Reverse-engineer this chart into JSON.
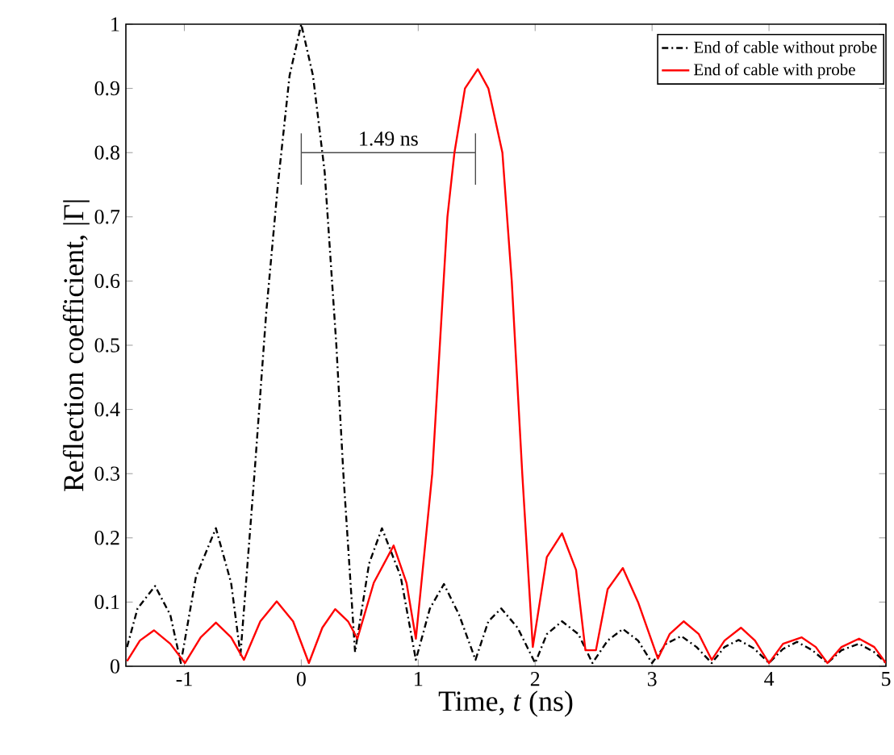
{
  "chart_data": {
    "type": "line",
    "xlabel": "Time, *t* (ns)",
    "ylabel": "Reflection coefficient, |Γ|",
    "xlim": [
      -1.5,
      5
    ],
    "xticks": [
      -1,
      0,
      1,
      2,
      3,
      4,
      5
    ],
    "ylim": [
      0,
      1
    ],
    "yticks": [
      0,
      0.1,
      0.2,
      0.3,
      0.4,
      0.5,
      0.6,
      0.7,
      0.8,
      0.9,
      1
    ],
    "grid": false,
    "legend": "top right",
    "marker": "none",
    "annotations": [
      {
        "text": "1.49 ns",
        "x": 0.745,
        "y": 0.8
      }
    ],
    "series": [
      {
        "name": "End of cable without probe",
        "color": "#000000",
        "line_style": "dashdot",
        "x": [
          -1.49,
          -1.4,
          -1.25,
          -1.12,
          -1.03,
          -0.9,
          -0.73,
          -0.6,
          -0.52,
          -0.4,
          -0.3,
          -0.2,
          -0.1,
          0,
          0.1,
          0.2,
          0.3,
          0.36,
          0.46,
          0.58,
          0.69,
          0.85,
          0.98,
          1.1,
          1.22,
          1.35,
          1.49,
          1.6,
          1.71,
          1.85,
          2.0,
          2.1,
          2.23,
          2.37,
          2.49,
          2.62,
          2.75,
          2.88,
          3.0,
          3.12,
          3.25,
          3.38,
          3.51,
          3.62,
          3.74,
          3.87,
          4.0,
          4.12,
          4.24,
          4.37,
          4.5,
          4.62,
          4.77,
          4.9,
          5.0
        ],
        "values": [
          0.03,
          0.09,
          0.125,
          0.08,
          0.005,
          0.14,
          0.215,
          0.13,
          0.018,
          0.3,
          0.55,
          0.75,
          0.92,
          1.0,
          0.92,
          0.77,
          0.5,
          0.3,
          0.022,
          0.16,
          0.215,
          0.14,
          0.01,
          0.09,
          0.128,
          0.08,
          0.01,
          0.07,
          0.09,
          0.06,
          0.005,
          0.05,
          0.07,
          0.05,
          0.005,
          0.04,
          0.058,
          0.04,
          0.005,
          0.035,
          0.047,
          0.03,
          0.005,
          0.03,
          0.041,
          0.028,
          0.005,
          0.027,
          0.038,
          0.025,
          0.005,
          0.025,
          0.035,
          0.022,
          0.005
        ]
      },
      {
        "type": "line",
        "color": "#4c4c4c",
        "x": [
          0,
          1.49
        ],
        "values": [
          0.8,
          0.8
        ],
        "errors": [
          [
            0.75,
            0.83
          ],
          [
            0.75,
            0.83
          ]
        ]
      },
      {
        "name": "End of cable with probe",
        "color": "#ff0000",
        "line_style": "solid",
        "x": [
          -1.49,
          -1.38,
          -1.26,
          -1.12,
          -0.995,
          -0.86,
          -0.73,
          -0.6,
          -0.49,
          -0.35,
          -0.21,
          -0.07,
          0.065,
          0.18,
          0.29,
          0.4,
          0.48,
          0.62,
          0.79,
          0.9,
          0.98,
          1.12,
          1.25,
          1.31,
          1.4,
          1.51,
          1.6,
          1.72,
          1.8,
          1.89,
          1.98,
          2.1,
          2.23,
          2.35,
          2.43,
          2.52,
          2.62,
          2.75,
          2.88,
          3.05,
          3.15,
          3.27,
          3.4,
          3.51,
          3.62,
          3.76,
          3.88,
          4.0,
          4.12,
          4.28,
          4.4,
          4.5,
          4.62,
          4.77,
          4.9,
          5.0
        ],
        "values": [
          0.008,
          0.04,
          0.056,
          0.035,
          0.005,
          0.045,
          0.068,
          0.045,
          0.01,
          0.07,
          0.101,
          0.07,
          0.005,
          0.06,
          0.089,
          0.07,
          0.043,
          0.13,
          0.188,
          0.13,
          0.043,
          0.3,
          0.7,
          0.8,
          0.9,
          0.93,
          0.9,
          0.8,
          0.6,
          0.3,
          0.03,
          0.17,
          0.207,
          0.15,
          0.025,
          0.025,
          0.12,
          0.153,
          0.1,
          0.012,
          0.05,
          0.07,
          0.05,
          0.01,
          0.04,
          0.06,
          0.04,
          0.005,
          0.035,
          0.045,
          0.03,
          0.005,
          0.03,
          0.043,
          0.03,
          0.005
        ]
      }
    ]
  }
}
